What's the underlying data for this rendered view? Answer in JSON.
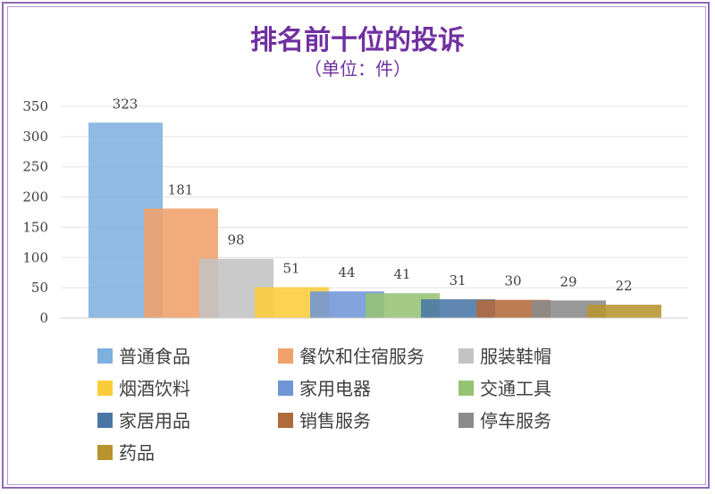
{
  "chart_data": {
    "type": "bar",
    "title": "排名前十位的投诉",
    "subtitle": "（单位：件）",
    "categories": [
      "普通食品",
      "餐饮和住宿服务",
      "服装鞋帽",
      "烟酒饮料",
      "家用电器",
      "交通工具",
      "家居用品",
      "销售服务",
      "停车服务",
      "药品"
    ],
    "values": [
      323,
      181,
      98,
      51,
      44,
      41,
      31,
      30,
      29,
      22
    ],
    "colors": [
      "#7eb0df",
      "#f0a06a",
      "#c3c3c3",
      "#fbcc3a",
      "#6f95d6",
      "#95c374",
      "#4a76a6",
      "#b2693b",
      "#8a8a8a",
      "#b8942f"
    ],
    "ylim": [
      0,
      350
    ],
    "yticks": [
      0,
      50,
      100,
      150,
      200,
      250,
      300,
      350
    ],
    "grid": true,
    "legend_position": "bottom",
    "xlabel": "",
    "ylabel": ""
  }
}
